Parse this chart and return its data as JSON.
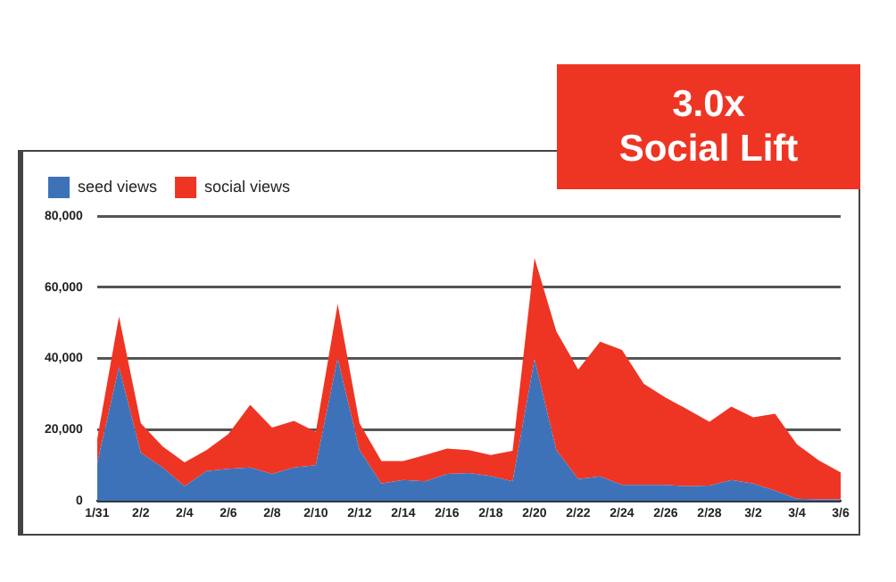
{
  "chart_data": {
    "type": "area",
    "stacked": true,
    "annotations": [
      "3.0x\nSocial Lift"
    ],
    "categories": [
      "1/31",
      null,
      "2/2",
      null,
      "2/4",
      null,
      "2/6",
      null,
      "2/8",
      null,
      "2/10",
      null,
      "2/12",
      null,
      "2/14",
      null,
      "2/16",
      null,
      "2/18",
      null,
      "2/20",
      null,
      "2/22",
      null,
      "2/24",
      null,
      "2/26",
      null,
      "2/28",
      null,
      "3/2",
      null,
      "3/4",
      null,
      "3/6"
    ],
    "series": [
      {
        "name": "seed views",
        "color": "#3d72b8",
        "values": [
          10500,
          37600,
          13500,
          9400,
          4100,
          8400,
          9000,
          9400,
          7600,
          9400,
          10000,
          40000,
          14300,
          4900,
          5900,
          5500,
          7600,
          7800,
          7000,
          5500,
          39800,
          14300,
          6100,
          6900,
          4500,
          4500,
          4500,
          4100,
          4300,
          5900,
          4900,
          2900,
          600,
          400,
          400
        ]
      },
      {
        "name": "social views",
        "color": "#ee3524",
        "values": [
          6700,
          14200,
          8300,
          5900,
          6700,
          5900,
          9800,
          17600,
          13000,
          13100,
          9400,
          15300,
          7500,
          6300,
          5300,
          7400,
          7100,
          6500,
          5900,
          8600,
          28400,
          33300,
          30800,
          37800,
          37900,
          28400,
          24500,
          21600,
          17900,
          20600,
          18600,
          21600,
          15300,
          11000,
          7600
        ]
      }
    ],
    "ylim": [
      0,
      80000
    ],
    "yticks": [
      {
        "value": 0,
        "label": "0"
      },
      {
        "value": 20000,
        "label": "20,000"
      },
      {
        "value": 40000,
        "label": "40,000"
      },
      {
        "value": 60000,
        "label": "60,000"
      },
      {
        "value": 80000,
        "label": "80,000"
      }
    ],
    "grid": "y",
    "legend": "top left",
    "marker": "none"
  }
}
